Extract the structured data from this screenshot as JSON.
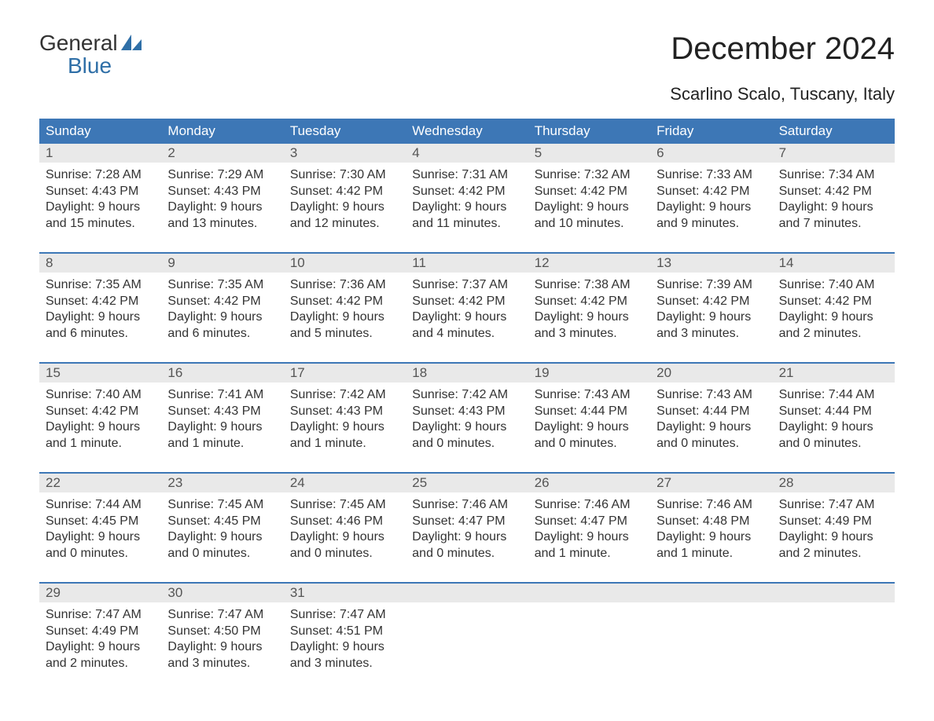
{
  "colors": {
    "header_bg": "#3d77b6",
    "header_text": "#ffffff",
    "daynum_bg": "#e9e9e9",
    "daynum_text": "#555555",
    "body_text": "#333333",
    "week_border": "#3d77b6",
    "logo_blue": "#2f6fa7",
    "page_bg": "#ffffff"
  },
  "typography": {
    "title_fontsize": 40,
    "subtitle_fontsize": 22,
    "dayhead_fontsize": 17,
    "daynum_fontsize": 17,
    "body_fontsize": 16,
    "logo_fontsize": 28,
    "font_family": "Arial"
  },
  "logo": {
    "line1": "General",
    "line2": "Blue"
  },
  "title": "December 2024",
  "subtitle": "Scarlino Scalo, Tuscany, Italy",
  "dayheads": [
    "Sunday",
    "Monday",
    "Tuesday",
    "Wednesday",
    "Thursday",
    "Friday",
    "Saturday"
  ],
  "weeks": [
    [
      {
        "num": "1",
        "sunrise": "Sunrise: 7:28 AM",
        "sunset": "Sunset: 4:43 PM",
        "d1": "Daylight: 9 hours",
        "d2": "and 15 minutes."
      },
      {
        "num": "2",
        "sunrise": "Sunrise: 7:29 AM",
        "sunset": "Sunset: 4:43 PM",
        "d1": "Daylight: 9 hours",
        "d2": "and 13 minutes."
      },
      {
        "num": "3",
        "sunrise": "Sunrise: 7:30 AM",
        "sunset": "Sunset: 4:42 PM",
        "d1": "Daylight: 9 hours",
        "d2": "and 12 minutes."
      },
      {
        "num": "4",
        "sunrise": "Sunrise: 7:31 AM",
        "sunset": "Sunset: 4:42 PM",
        "d1": "Daylight: 9 hours",
        "d2": "and 11 minutes."
      },
      {
        "num": "5",
        "sunrise": "Sunrise: 7:32 AM",
        "sunset": "Sunset: 4:42 PM",
        "d1": "Daylight: 9 hours",
        "d2": "and 10 minutes."
      },
      {
        "num": "6",
        "sunrise": "Sunrise: 7:33 AM",
        "sunset": "Sunset: 4:42 PM",
        "d1": "Daylight: 9 hours",
        "d2": "and 9 minutes."
      },
      {
        "num": "7",
        "sunrise": "Sunrise: 7:34 AM",
        "sunset": "Sunset: 4:42 PM",
        "d1": "Daylight: 9 hours",
        "d2": "and 7 minutes."
      }
    ],
    [
      {
        "num": "8",
        "sunrise": "Sunrise: 7:35 AM",
        "sunset": "Sunset: 4:42 PM",
        "d1": "Daylight: 9 hours",
        "d2": "and 6 minutes."
      },
      {
        "num": "9",
        "sunrise": "Sunrise: 7:35 AM",
        "sunset": "Sunset: 4:42 PM",
        "d1": "Daylight: 9 hours",
        "d2": "and 6 minutes."
      },
      {
        "num": "10",
        "sunrise": "Sunrise: 7:36 AM",
        "sunset": "Sunset: 4:42 PM",
        "d1": "Daylight: 9 hours",
        "d2": "and 5 minutes."
      },
      {
        "num": "11",
        "sunrise": "Sunrise: 7:37 AM",
        "sunset": "Sunset: 4:42 PM",
        "d1": "Daylight: 9 hours",
        "d2": "and 4 minutes."
      },
      {
        "num": "12",
        "sunrise": "Sunrise: 7:38 AM",
        "sunset": "Sunset: 4:42 PM",
        "d1": "Daylight: 9 hours",
        "d2": "and 3 minutes."
      },
      {
        "num": "13",
        "sunrise": "Sunrise: 7:39 AM",
        "sunset": "Sunset: 4:42 PM",
        "d1": "Daylight: 9 hours",
        "d2": "and 3 minutes."
      },
      {
        "num": "14",
        "sunrise": "Sunrise: 7:40 AM",
        "sunset": "Sunset: 4:42 PM",
        "d1": "Daylight: 9 hours",
        "d2": "and 2 minutes."
      }
    ],
    [
      {
        "num": "15",
        "sunrise": "Sunrise: 7:40 AM",
        "sunset": "Sunset: 4:42 PM",
        "d1": "Daylight: 9 hours",
        "d2": "and 1 minute."
      },
      {
        "num": "16",
        "sunrise": "Sunrise: 7:41 AM",
        "sunset": "Sunset: 4:43 PM",
        "d1": "Daylight: 9 hours",
        "d2": "and 1 minute."
      },
      {
        "num": "17",
        "sunrise": "Sunrise: 7:42 AM",
        "sunset": "Sunset: 4:43 PM",
        "d1": "Daylight: 9 hours",
        "d2": "and 1 minute."
      },
      {
        "num": "18",
        "sunrise": "Sunrise: 7:42 AM",
        "sunset": "Sunset: 4:43 PM",
        "d1": "Daylight: 9 hours",
        "d2": "and 0 minutes."
      },
      {
        "num": "19",
        "sunrise": "Sunrise: 7:43 AM",
        "sunset": "Sunset: 4:44 PM",
        "d1": "Daylight: 9 hours",
        "d2": "and 0 minutes."
      },
      {
        "num": "20",
        "sunrise": "Sunrise: 7:43 AM",
        "sunset": "Sunset: 4:44 PM",
        "d1": "Daylight: 9 hours",
        "d2": "and 0 minutes."
      },
      {
        "num": "21",
        "sunrise": "Sunrise: 7:44 AM",
        "sunset": "Sunset: 4:44 PM",
        "d1": "Daylight: 9 hours",
        "d2": "and 0 minutes."
      }
    ],
    [
      {
        "num": "22",
        "sunrise": "Sunrise: 7:44 AM",
        "sunset": "Sunset: 4:45 PM",
        "d1": "Daylight: 9 hours",
        "d2": "and 0 minutes."
      },
      {
        "num": "23",
        "sunrise": "Sunrise: 7:45 AM",
        "sunset": "Sunset: 4:45 PM",
        "d1": "Daylight: 9 hours",
        "d2": "and 0 minutes."
      },
      {
        "num": "24",
        "sunrise": "Sunrise: 7:45 AM",
        "sunset": "Sunset: 4:46 PM",
        "d1": "Daylight: 9 hours",
        "d2": "and 0 minutes."
      },
      {
        "num": "25",
        "sunrise": "Sunrise: 7:46 AM",
        "sunset": "Sunset: 4:47 PM",
        "d1": "Daylight: 9 hours",
        "d2": "and 0 minutes."
      },
      {
        "num": "26",
        "sunrise": "Sunrise: 7:46 AM",
        "sunset": "Sunset: 4:47 PM",
        "d1": "Daylight: 9 hours",
        "d2": "and 1 minute."
      },
      {
        "num": "27",
        "sunrise": "Sunrise: 7:46 AM",
        "sunset": "Sunset: 4:48 PM",
        "d1": "Daylight: 9 hours",
        "d2": "and 1 minute."
      },
      {
        "num": "28",
        "sunrise": "Sunrise: 7:47 AM",
        "sunset": "Sunset: 4:49 PM",
        "d1": "Daylight: 9 hours",
        "d2": "and 2 minutes."
      }
    ],
    [
      {
        "num": "29",
        "sunrise": "Sunrise: 7:47 AM",
        "sunset": "Sunset: 4:49 PM",
        "d1": "Daylight: 9 hours",
        "d2": "and 2 minutes."
      },
      {
        "num": "30",
        "sunrise": "Sunrise: 7:47 AM",
        "sunset": "Sunset: 4:50 PM",
        "d1": "Daylight: 9 hours",
        "d2": "and 3 minutes."
      },
      {
        "num": "31",
        "sunrise": "Sunrise: 7:47 AM",
        "sunset": "Sunset: 4:51 PM",
        "d1": "Daylight: 9 hours",
        "d2": "and 3 minutes."
      },
      null,
      null,
      null,
      null
    ]
  ]
}
